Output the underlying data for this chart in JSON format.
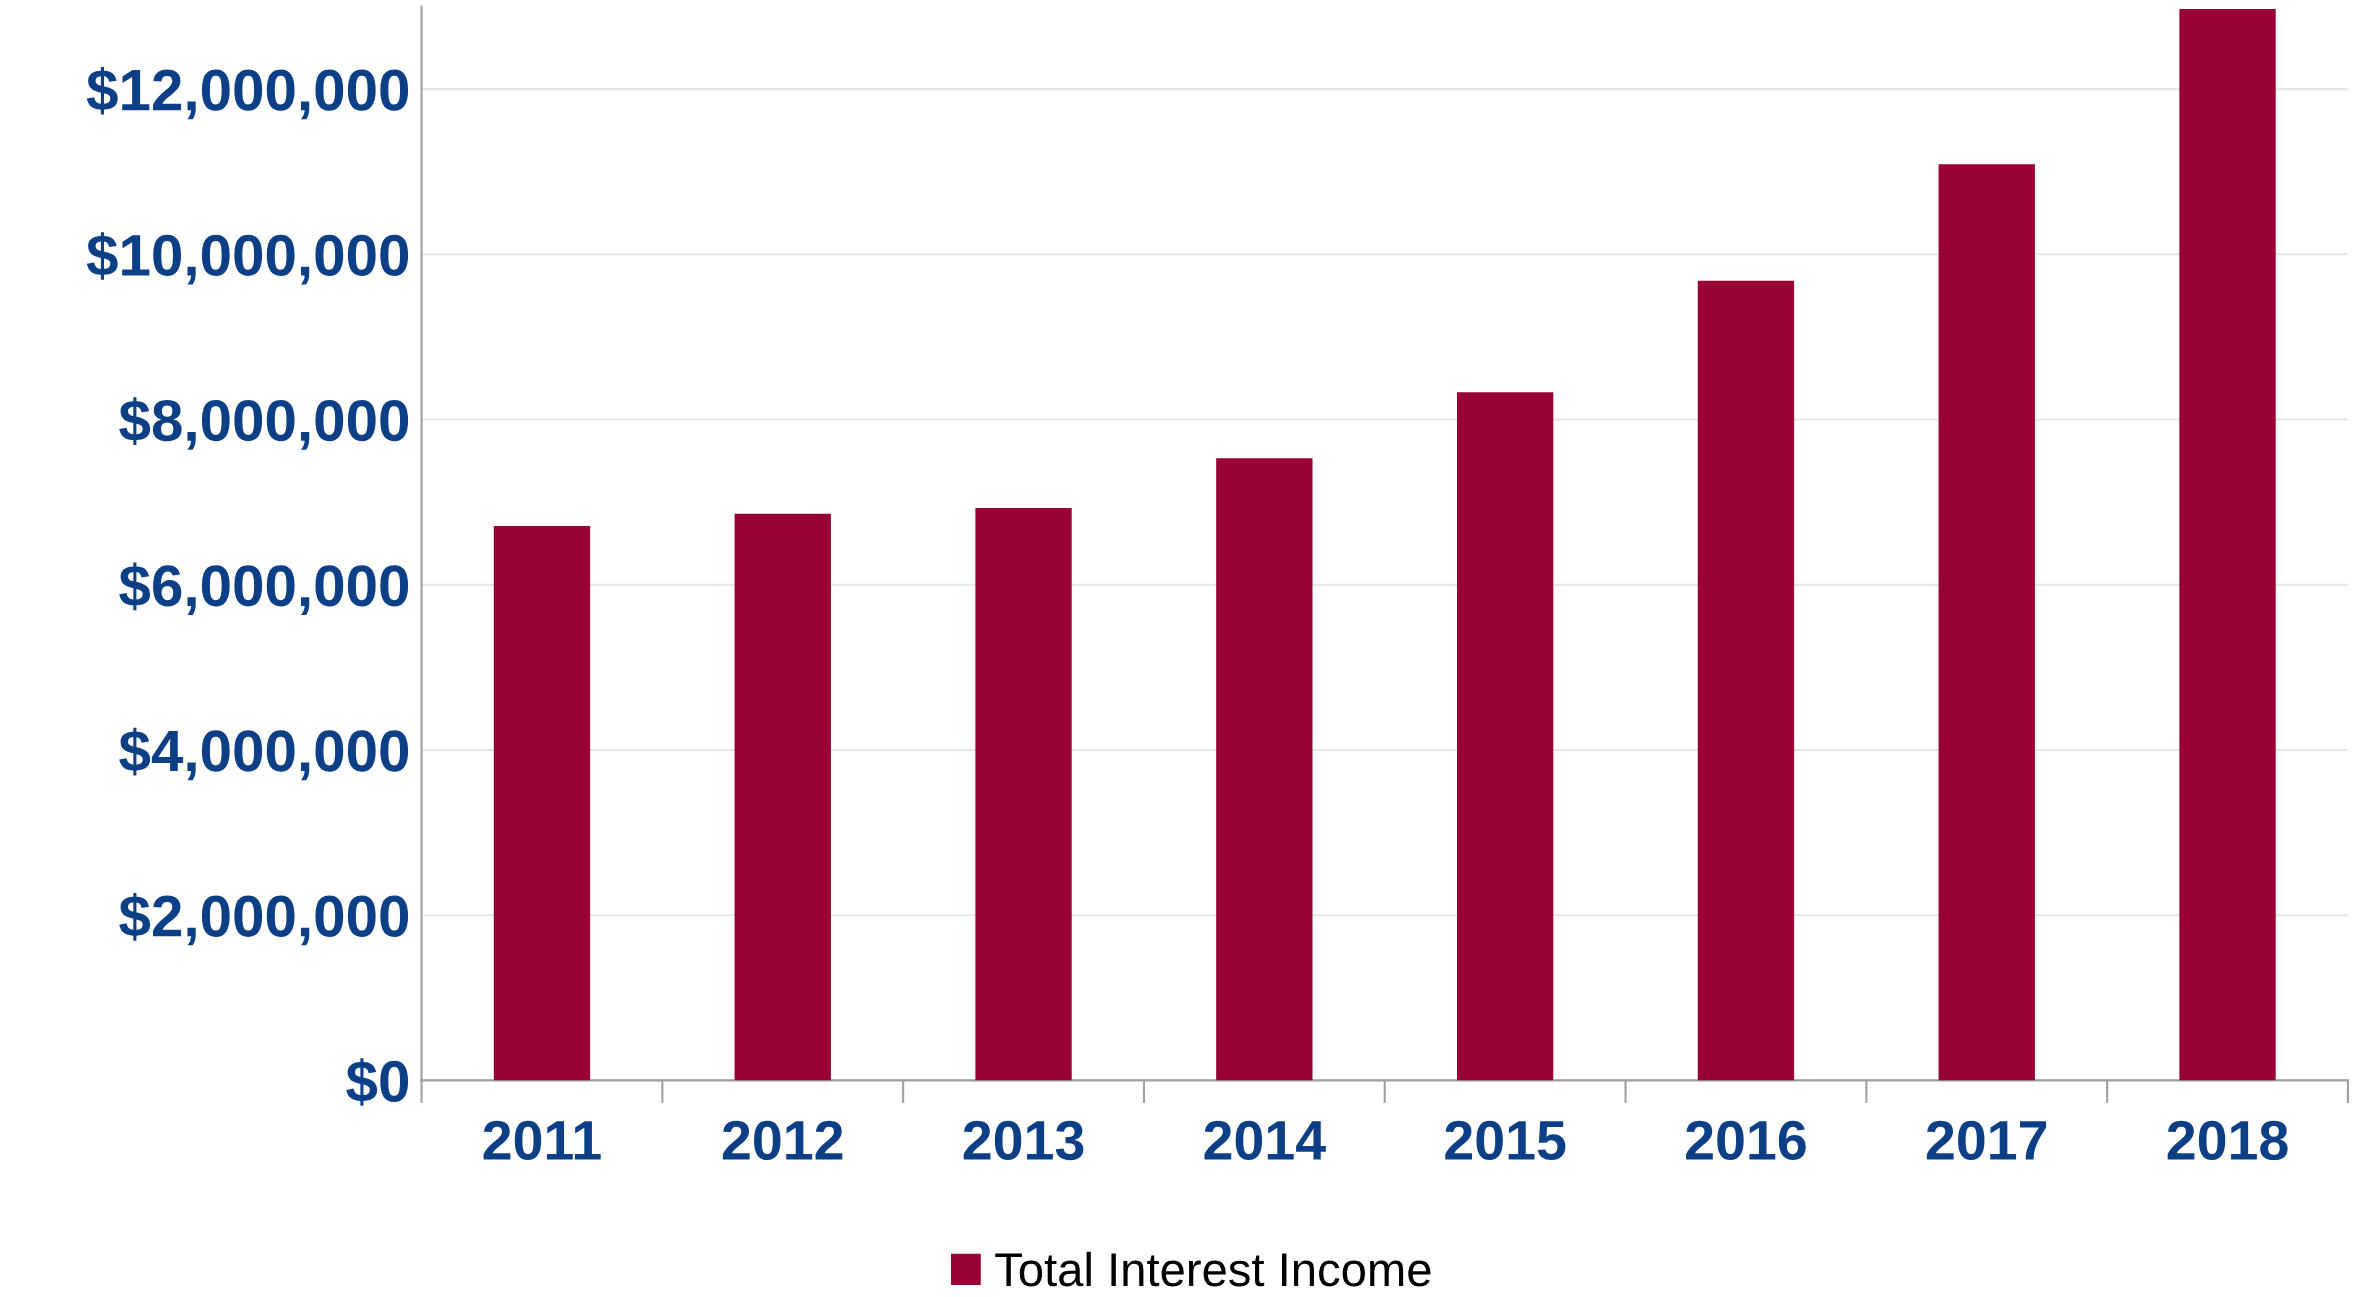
{
  "chart_data": {
    "type": "bar",
    "categories": [
      "2011",
      "2012",
      "2013",
      "2014",
      "2015",
      "2016",
      "2017",
      "2018"
    ],
    "series": [
      {
        "name": "Total Interest Income",
        "color": "#990033",
        "values": [
          6710000,
          6860000,
          6930000,
          7530000,
          8330000,
          9680000,
          11090000,
          12970000
        ]
      }
    ],
    "ylim": [
      0,
      13000000
    ],
    "yticks": [
      {
        "value": 0,
        "label": "$0"
      },
      {
        "value": 2000000,
        "label": "$2,000,000"
      },
      {
        "value": 4000000,
        "label": "$4,000,000"
      },
      {
        "value": 6000000,
        "label": "$6,000,000"
      },
      {
        "value": 8000000,
        "label": "$8,000,000"
      },
      {
        "value": 10000000,
        "label": "$10,000,000"
      },
      {
        "value": 12000000,
        "label": "$12,000,000"
      }
    ],
    "grid": "y",
    "legend": "bottom"
  }
}
